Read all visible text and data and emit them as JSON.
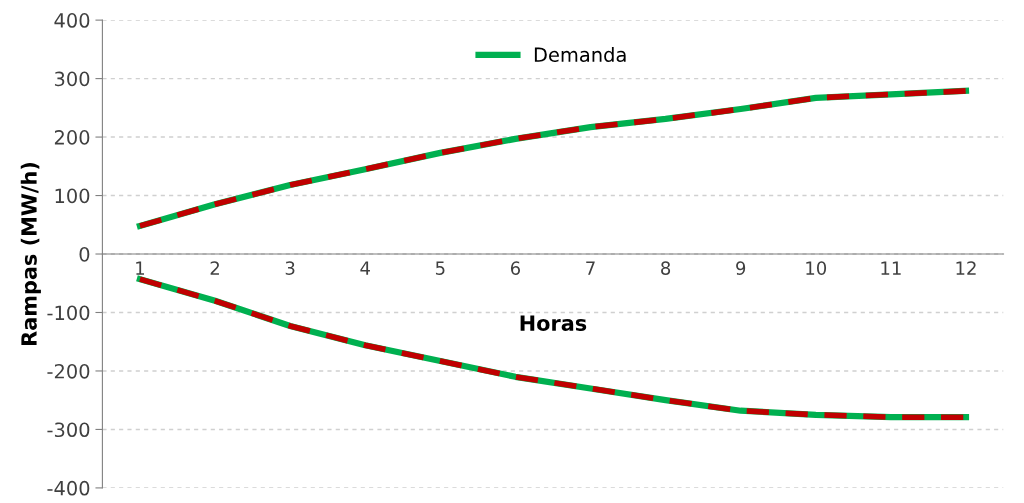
{
  "chart_data": {
    "type": "line",
    "xlabel": "Horas",
    "ylabel": "Rampas (MW/h)",
    "categories": [
      "1",
      "2",
      "3",
      "4",
      "5",
      "6",
      "7",
      "8",
      "9",
      "10",
      "11",
      "12"
    ],
    "series": [
      {
        "name": "Demanda",
        "color": "#00b050",
        "line_style": "solid",
        "values": [
          48,
          85,
          118,
          145,
          173,
          197,
          217,
          231,
          248,
          267,
          273,
          279
        ]
      },
      {
        "color": "#c00000",
        "line_style": "dashed",
        "values": [
          48,
          85,
          118,
          145,
          173,
          197,
          217,
          231,
          248,
          267,
          273,
          279
        ]
      },
      {
        "color": "#00b050",
        "line_style": "solid",
        "values": [
          -43,
          -80,
          -123,
          -156,
          -183,
          -210,
          -230,
          -250,
          -268,
          -275,
          -279,
          -279
        ]
      },
      {
        "color": "#c00000",
        "line_style": "dashed",
        "values": [
          -43,
          -80,
          -123,
          -156,
          -183,
          -210,
          -230,
          -250,
          -268,
          -275,
          -279,
          -279
        ]
      }
    ],
    "ylim": [
      -400,
      400
    ],
    "yticks": [
      -400,
      -300,
      -200,
      -100,
      0,
      100,
      200,
      300,
      400
    ],
    "grid": "y",
    "legend": "top",
    "marker": "none"
  }
}
